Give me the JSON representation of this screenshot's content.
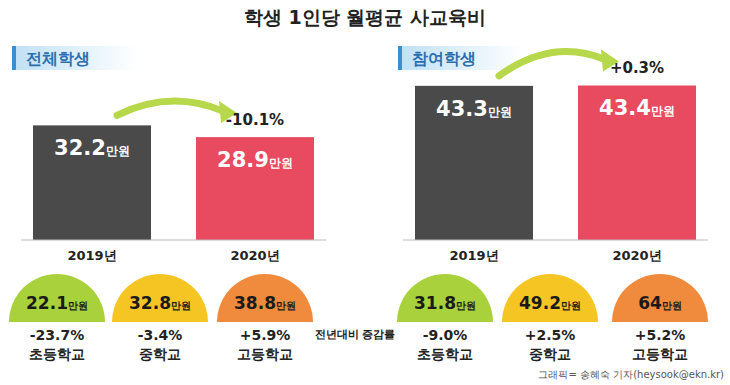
{
  "title": "학생 1인당 월평균 사교육비",
  "change_note": "전년대비 증감률",
  "credit": "그래픽= 송혜숙 기자(heysook@ekn.kr)",
  "chart_data": [
    {
      "type": "bar",
      "title": "전체학생",
      "categories": [
        "2019년",
        "2020년"
      ],
      "values": [
        32.2,
        28.9
      ],
      "value_labels": [
        "32.2만원",
        "28.9만원"
      ],
      "colors": [
        "#4a4a4a",
        "#e84a5f"
      ],
      "ylim": [
        0,
        50
      ],
      "tick_labels": false,
      "grid": false,
      "data_labels": true,
      "annotation": {
        "value": -10.1,
        "label": "-10.1%"
      },
      "breakdown": {
        "categories": [
          "초등학교",
          "중학교",
          "고등학교"
        ],
        "values": [
          22.1,
          32.8,
          38.8
        ],
        "value_labels": [
          "22.1만원",
          "32.8만원",
          "38.8만원"
        ],
        "changes": [
          -23.7,
          -3.4,
          5.9
        ],
        "change_labels": [
          "-23.7%",
          "-3.4%",
          "+5.9%"
        ],
        "colors": [
          "#a9d13b",
          "#f5c623",
          "#f08a3c"
        ]
      }
    },
    {
      "type": "bar",
      "title": "참여학생",
      "categories": [
        "2019년",
        "2020년"
      ],
      "values": [
        43.3,
        43.4
      ],
      "value_labels": [
        "43.3만원",
        "43.4만원"
      ],
      "colors": [
        "#4a4a4a",
        "#e84a5f"
      ],
      "ylim": [
        0,
        50
      ],
      "tick_labels": false,
      "grid": false,
      "data_labels": true,
      "annotation": {
        "value": 0.3,
        "label": "+0.3%"
      },
      "breakdown": {
        "categories": [
          "초등학교",
          "중학교",
          "고등학교"
        ],
        "values": [
          31.8,
          49.2,
          64
        ],
        "value_labels": [
          "31.8만원",
          "49.2만원",
          "64만원"
        ],
        "changes": [
          -9.0,
          2.5,
          5.2
        ],
        "change_labels": [
          "-9.0%",
          "+2.5%",
          "+5.2%"
        ],
        "colors": [
          "#a9d13b",
          "#f5c623",
          "#f08a3c"
        ]
      }
    }
  ]
}
